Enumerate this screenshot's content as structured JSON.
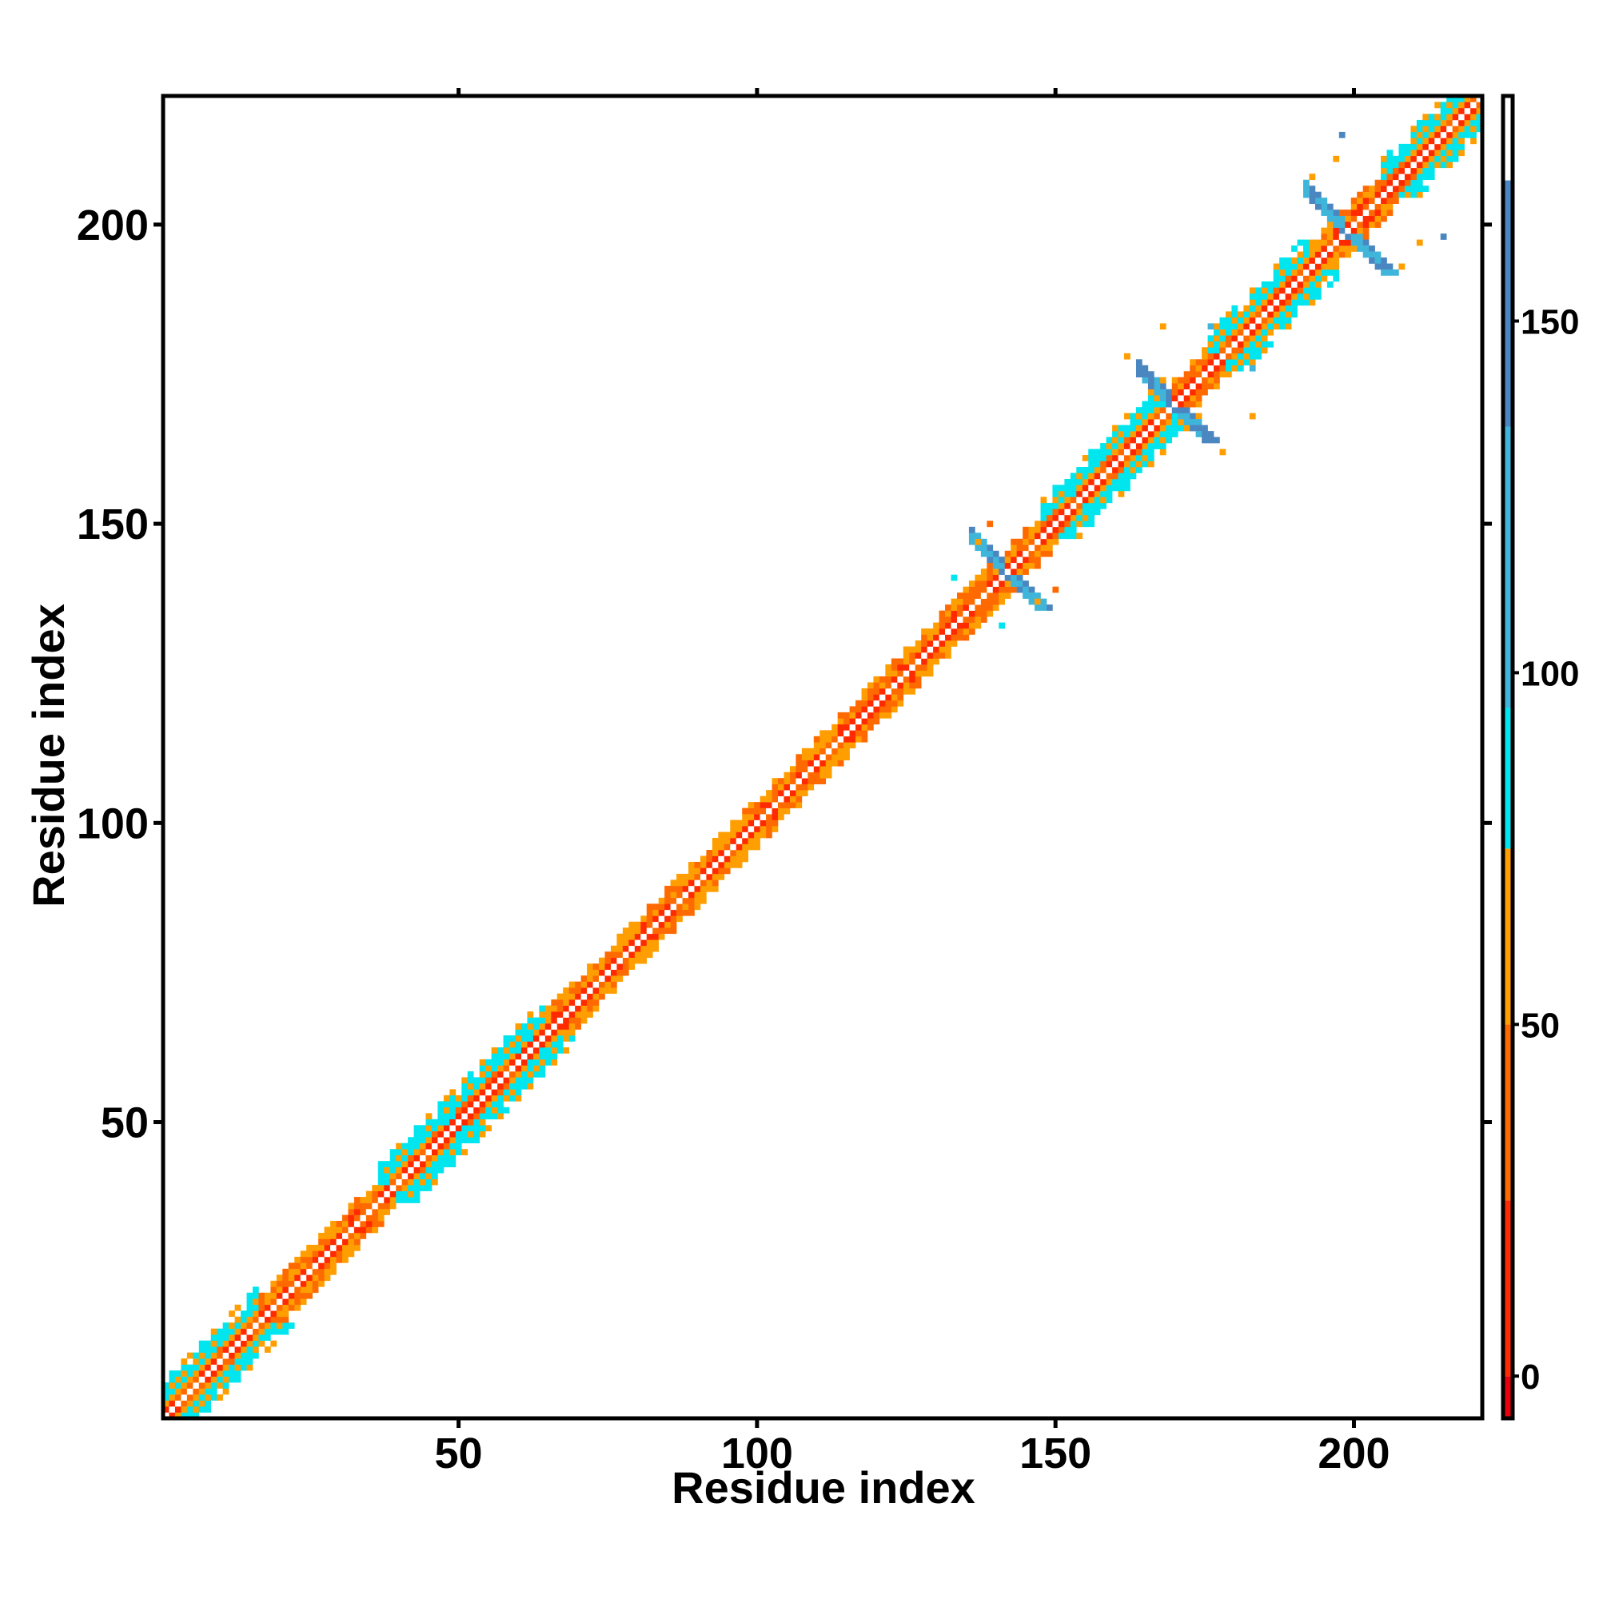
{
  "chart_data": {
    "type": "heatmap",
    "xlabel": "Residue index",
    "ylabel": "Residue index",
    "xlim": [
      0.5,
      221.5
    ],
    "ylim": [
      0.5,
      221.5
    ],
    "x_ticks": [
      50,
      100,
      150,
      200
    ],
    "y_ticks": [
      50,
      100,
      150,
      200
    ],
    "colorbar": {
      "range": [
        -6,
        182
      ],
      "ticks": [
        0,
        50,
        100,
        150
      ],
      "bands": [
        {
          "from": -6,
          "to": 0,
          "color": "#e8000b"
        },
        {
          "from": 0,
          "to": 25,
          "color": "#ff2a00"
        },
        {
          "from": 25,
          "to": 50,
          "color": "#ff6a00"
        },
        {
          "from": 50,
          "to": 75,
          "color": "#ff9e00"
        },
        {
          "from": 75,
          "to": 95,
          "color": "#00e5ee"
        },
        {
          "from": 95,
          "to": 135,
          "color": "#3fb6d9"
        },
        {
          "from": 135,
          "to": 170,
          "color": "#4a86c0"
        },
        {
          "from": 170,
          "to": 182,
          "color": "#ffffff"
        }
      ]
    },
    "grid": false,
    "n_residues": 221,
    "regions": [
      {
        "residues": [
          1,
          221
        ],
        "pattern": "diagonal band, values 0-75 (red/orange)"
      },
      {
        "residues": [
          1,
          16
        ],
        "pattern": "wide band with cyan stripes, values ~90"
      },
      {
        "residues": [
          37,
          64
        ],
        "pattern": "wide band with cyan stripes, values ~90"
      },
      {
        "residues": [
          137,
          147
        ],
        "pattern": "cross / off-diagonal blob, values ~100-160"
      },
      {
        "residues": [
          148,
          168
        ],
        "pattern": "wide band with cyan stripes, values ~90"
      },
      {
        "residues": [
          164,
          176
        ],
        "pattern": "cross / off-diagonal blob, values ~100-160"
      },
      {
        "residues": [
          176,
          192
        ],
        "pattern": "wide band with cyan stripes, values ~90"
      },
      {
        "residues": [
          192,
          210
        ],
        "pattern": "cross / off-diagonal blob, values ~100-160"
      },
      {
        "residues": [
          205,
          221
        ],
        "pattern": "wide band with cyan stripes, values ~90"
      }
    ]
  }
}
